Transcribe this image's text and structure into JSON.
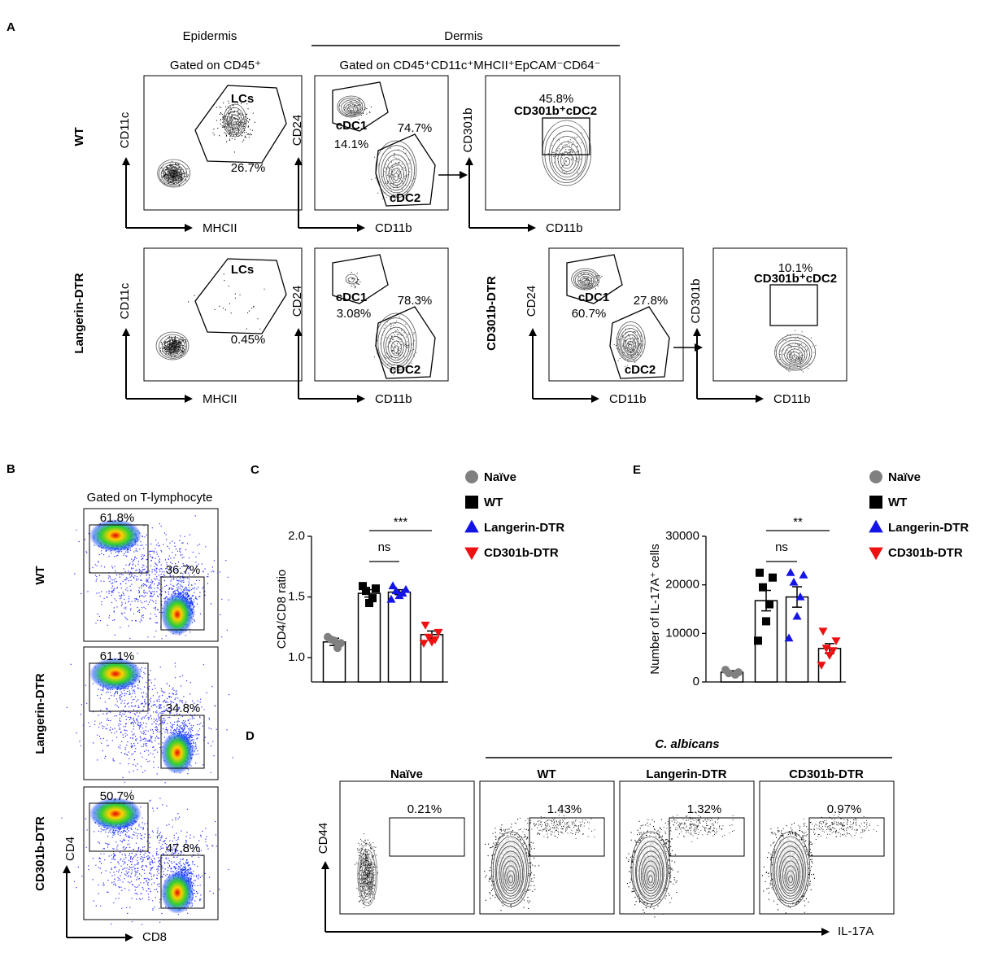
{
  "panel_a": {
    "label": "A",
    "epidermis": "Epidermis",
    "dermis": "Dermis",
    "gate_epidermis": "Gated on CD45⁺",
    "gate_dermis": "Gated on CD45⁺CD11c⁺MHCII⁺EpCAM⁻CD64⁻",
    "row_labels": [
      "WT",
      "Langerin-DTR",
      "CD301b-DTR"
    ],
    "plots": [
      {
        "x_label": "MHCII",
        "y_label": "CD11c",
        "texts": [
          "LCs",
          "26.7%"
        ]
      },
      {
        "x_label": "CD11b",
        "y_label": "CD24",
        "texts": [
          "cDC1",
          "14.1%",
          "74.7%",
          "cDC2"
        ]
      },
      {
        "x_label": "CD11b",
        "y_label": "CD301b",
        "texts": [
          "45.8%",
          "CD301b⁺cDC2"
        ]
      },
      {
        "x_label": "MHCII",
        "y_label": "CD11c",
        "texts": [
          "LCs",
          "0.45%"
        ]
      },
      {
        "x_label": "CD11b",
        "y_label": "CD24",
        "texts": [
          "cDC1",
          "3.08%",
          "78.3%",
          "cDC2"
        ]
      },
      {
        "x_label": "CD11b",
        "y_label": "CD24",
        "texts": [
          "cDC1",
          "60.7%",
          "27.8%",
          "cDC2"
        ]
      },
      {
        "x_label": "CD11b",
        "y_label": "CD301b",
        "texts": [
          "10.1%",
          "CD301b⁺cDC2"
        ]
      }
    ]
  },
  "panel_b": {
    "label": "B",
    "gate": "Gated on T-lymphocyte",
    "x_label": "CD8",
    "y_label": "CD4",
    "rows": [
      {
        "label": "WT",
        "cd4": "61.8%",
        "cd8": "36.7%"
      },
      {
        "label": "Langerin-DTR",
        "cd4": "61.1%",
        "cd8": "34.8%"
      },
      {
        "label": "CD301b-DTR",
        "cd4": "50.7%",
        "cd8": "47.8%"
      }
    ]
  },
  "panel_d": {
    "label": "D",
    "infection": "C. albicans",
    "x_label": "IL-17A",
    "y_label": "CD44",
    "columns": [
      {
        "label": "Naïve",
        "percent": "0.21%"
      },
      {
        "label": "WT",
        "percent": "1.43%"
      },
      {
        "label": "Langerin-DTR",
        "percent": "1.32%"
      },
      {
        "label": "CD301b-DTR",
        "percent": "0.97%"
      }
    ]
  },
  "chart_data": [
    {
      "type": "bar",
      "panel_label": "C",
      "y_label": "CD4/CD8 ratio",
      "ylim": [
        0.8,
        2.0
      ],
      "yticks": [
        {
          "value": 1,
          "label": "1.0"
        },
        {
          "value": 1.5,
          "label": "1.5"
        },
        {
          "value": 2,
          "label": "2.0"
        }
      ],
      "significance": [
        "***",
        "ns"
      ],
      "series": [
        {
          "name": "Naïve",
          "color": "#808080",
          "marker": "circle",
          "mean": 1.13,
          "error": 0.03,
          "points": [
            1.17,
            1.12,
            1.15,
            1.08,
            1.14
          ]
        },
        {
          "name": "WT",
          "color": "#000000",
          "marker": "square",
          "mean": 1.53,
          "error": 0.03,
          "points": [
            1.59,
            1.57,
            1.55,
            1.49,
            1.45
          ]
        },
        {
          "name": "Langerin-DTR",
          "color": "#1414e6",
          "marker": "triangle",
          "mean": 1.54,
          "error": 0.02,
          "points": [
            1.59,
            1.56,
            1.55,
            1.53,
            1.51,
            1.48
          ]
        },
        {
          "name": "CD301b-DTR",
          "color": "#ee1111",
          "marker": "triangle-down",
          "mean": 1.19,
          "error": 0.03,
          "points": [
            1.27,
            1.21,
            1.17,
            1.15,
            1.13,
            1.12
          ]
        }
      ]
    },
    {
      "type": "bar",
      "panel_label": "E",
      "y_label": "Number of IL-17A⁺ cells",
      "ylim": [
        0,
        30000
      ],
      "yticks": [
        0,
        10000,
        20000,
        30000
      ],
      "significance": [
        "**",
        "ns"
      ],
      "series": [
        {
          "name": "Naïve",
          "color": "#808080",
          "marker": "circle",
          "mean": 2000,
          "error": 300,
          "points": [
            2500,
            2000,
            1800,
            1500
          ]
        },
        {
          "name": "WT",
          "color": "#000000",
          "marker": "square",
          "mean": 16750,
          "error": 2100,
          "points": [
            22500,
            21500,
            19500,
            16000,
            12500,
            8500
          ]
        },
        {
          "name": "Langerin-DTR",
          "color": "#1414e6",
          "marker": "triangle",
          "mean": 17500,
          "error": 2100,
          "points": [
            22500,
            22000,
            20500,
            17500,
            13500,
            9000
          ]
        },
        {
          "name": "CD301b-DTR",
          "color": "#ee1111",
          "marker": "triangle-down",
          "mean": 6900,
          "error": 1000,
          "points": [
            10500,
            8500,
            7000,
            6500,
            5500,
            3500
          ]
        }
      ]
    }
  ]
}
